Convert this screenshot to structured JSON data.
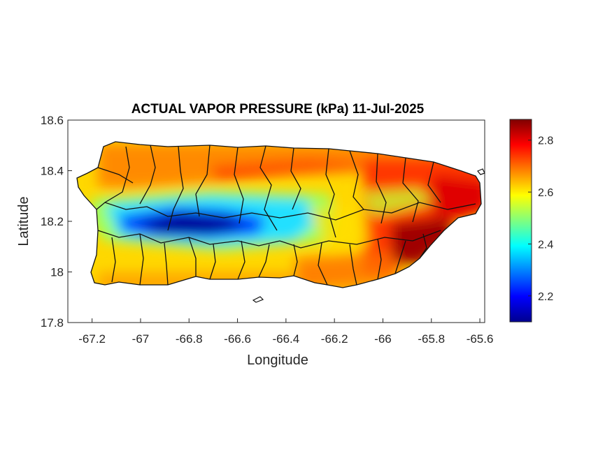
{
  "chart_data": {
    "type": "heatmap",
    "title": "ACTUAL VAPOR PRESSURE (kPa) 11-Jul-2025",
    "xlabel": "Longitude",
    "ylabel": "Latitude",
    "xlim": [
      -67.3,
      -65.58
    ],
    "ylim": [
      17.8,
      18.6
    ],
    "x_ticks": [
      -67.2,
      -67,
      -66.8,
      -66.6,
      -66.4,
      -66.2,
      -66,
      -65.8,
      -65.6
    ],
    "x_tick_labels": [
      "-67.2",
      "-67",
      "-66.8",
      "-66.6",
      "-66.4",
      "-66.2",
      "-66",
      "-65.8",
      "-65.6"
    ],
    "y_ticks": [
      17.8,
      18,
      18.2,
      18.4,
      18.6
    ],
    "y_tick_labels": [
      "17.8",
      "18",
      "18.2",
      "18.4",
      "18.6"
    ],
    "colorbar": {
      "range": [
        2.1,
        2.88
      ],
      "colormap": "jet",
      "ticks": [
        2.2,
        2.4,
        2.6,
        2.8
      ],
      "tick_labels": [
        "2.2",
        "2.4",
        "2.6",
        "2.8"
      ]
    },
    "grid": false,
    "region": "Puerto Rico with municipality boundaries"
  },
  "colors": {
    "low": "#00008f",
    "mid": "#7fff7f",
    "high": "#800000",
    "background": "#ffffff",
    "boundary": "#111111"
  }
}
